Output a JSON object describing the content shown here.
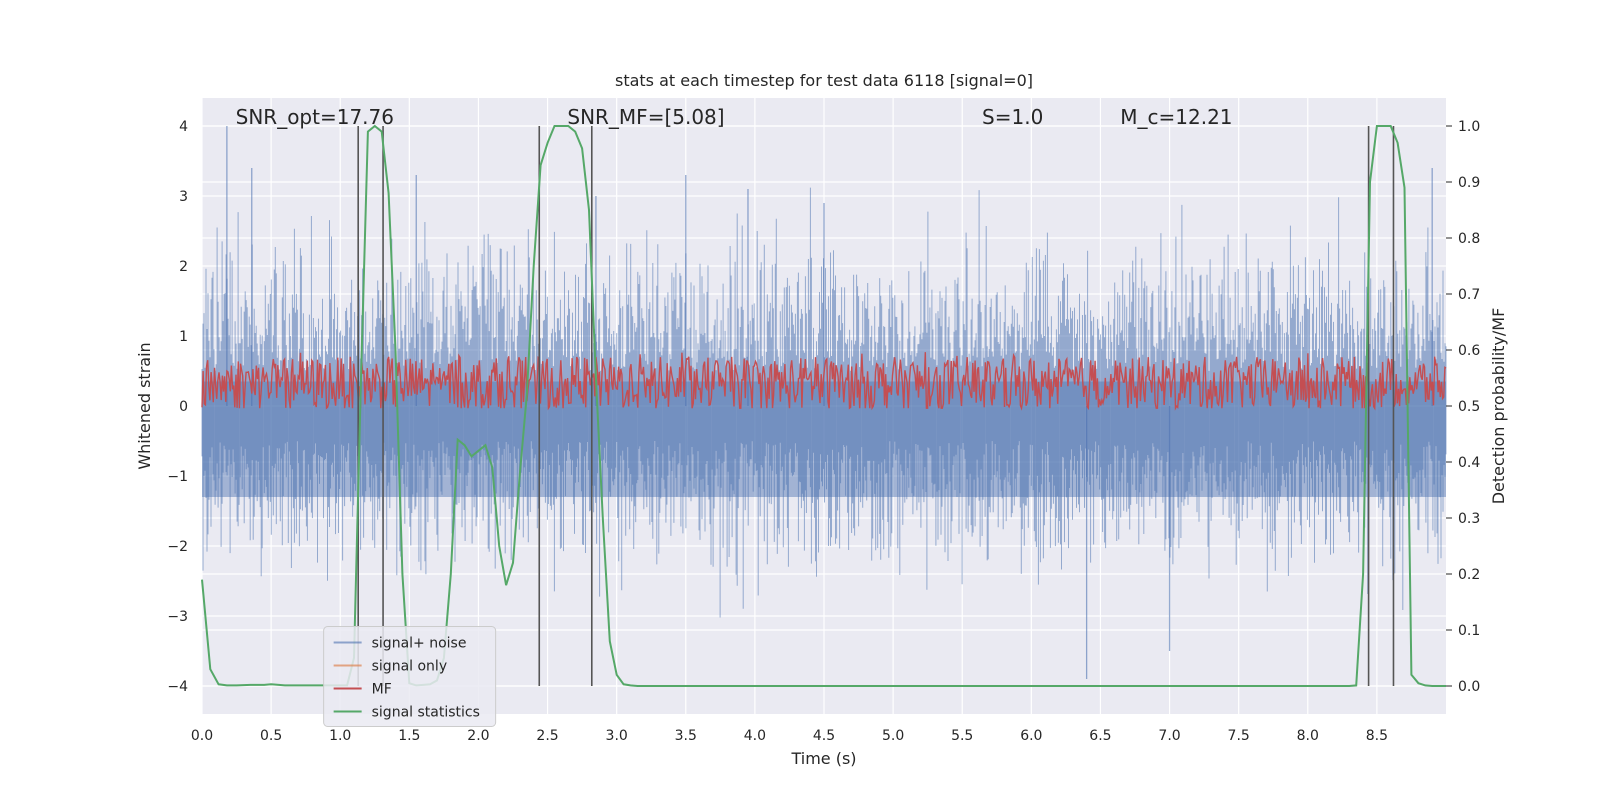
{
  "chart_data": {
    "type": "line",
    "title": "stats at each timestep for test data 6118 [signal=0]",
    "xlabel": "Time (s)",
    "ylabel": "Whitened strain",
    "y2label": "Detection probability/MF",
    "xlim": [
      0.0,
      9.0
    ],
    "ylim": [
      -4.4,
      4.4
    ],
    "y2lim": [
      -0.05,
      1.05
    ],
    "grid": true,
    "legend_location": "lower-left",
    "xticks": [
      0.0,
      0.5,
      1.0,
      1.5,
      2.0,
      2.5,
      3.0,
      3.5,
      4.0,
      4.5,
      5.0,
      5.5,
      6.0,
      6.5,
      7.0,
      7.5,
      8.0,
      8.5
    ],
    "xtick_labels": [
      "0.0",
      "0.5",
      "1.0",
      "1.5",
      "2.0",
      "2.5",
      "3.0",
      "3.5",
      "4.0",
      "4.5",
      "5.0",
      "5.5",
      "6.0",
      "6.5",
      "7.0",
      "7.5",
      "8.0",
      "8.5"
    ],
    "yticks": [
      -4,
      -3,
      -2,
      -1,
      0,
      1,
      2,
      3,
      4
    ],
    "ytick_labels": [
      "−4",
      "−3",
      "−2",
      "−1",
      "0",
      "1",
      "2",
      "3",
      "4"
    ],
    "y2ticks": [
      0.0,
      0.1,
      0.2,
      0.3,
      0.4,
      0.5,
      0.6,
      0.7,
      0.8,
      0.9,
      1.0
    ],
    "y2tick_labels": [
      "0.0",
      "0.1",
      "0.2",
      "0.3",
      "0.4",
      "0.5",
      "0.6",
      "0.7",
      "0.8",
      "0.9",
      "1.0"
    ],
    "annotations": [
      {
        "text": "SNR_opt=17.76",
        "x": 0.2,
        "y": 4.0
      },
      {
        "text": "SNR_MF=[5.08]",
        "x": 2.6,
        "y": 4.0
      },
      {
        "text": "S=1.0",
        "x": 5.6,
        "y": 4.0
      },
      {
        "text": "M_c=12.21",
        "x": 6.6,
        "y": 4.0
      }
    ],
    "vertical_markers": [
      1.13,
      1.31,
      2.44,
      2.82,
      8.44,
      8.62
    ],
    "vertical_marker_range": [
      -4.0,
      4.0
    ],
    "series": [
      {
        "name": "signal+ noise",
        "color": "#4c72b0",
        "axis": "left",
        "style": "noise",
        "x_range": [
          0.0,
          9.0
        ],
        "center": 0.0,
        "typical_amplitude": 1.6,
        "peak_amplitude": 4.0,
        "spike_times": [
          0.18,
          0.36,
          1.13,
          1.55,
          2.85,
          3.5,
          3.95,
          4.5,
          6.4,
          7.0,
          8.9
        ],
        "spike_values": [
          4.0,
          3.4,
          3.0,
          3.3,
          3.0,
          3.3,
          3.1,
          2.9,
          -3.9,
          -3.5,
          3.4
        ]
      },
      {
        "name": "signal only",
        "color": "#dd8452",
        "axis": "left",
        "x": [
          0.0,
          9.0
        ],
        "y": [
          0.0,
          0.0
        ]
      },
      {
        "name": "MF",
        "color": "#c44e52",
        "axis": "right",
        "style": "noise",
        "x_range": [
          0.0,
          9.0
        ],
        "center": 0.54,
        "band_low": 0.5,
        "band_high": 0.58,
        "peak_value": 0.6
      },
      {
        "name": "signal statistics",
        "color": "#55a868",
        "axis": "right",
        "x": [
          0.0,
          0.06,
          0.12,
          0.18,
          0.25,
          0.35,
          0.45,
          0.5,
          0.6,
          0.7,
          0.8,
          0.9,
          1.0,
          1.05,
          1.1,
          1.15,
          1.2,
          1.25,
          1.3,
          1.35,
          1.4,
          1.45,
          1.5,
          1.55,
          1.6,
          1.65,
          1.7,
          1.75,
          1.8,
          1.85,
          1.9,
          1.95,
          2.0,
          2.05,
          2.1,
          2.15,
          2.2,
          2.25,
          2.3,
          2.35,
          2.4,
          2.45,
          2.5,
          2.55,
          2.6,
          2.65,
          2.7,
          2.75,
          2.8,
          2.85,
          2.9,
          2.95,
          3.0,
          3.05,
          3.1,
          3.15,
          3.2,
          3.5,
          4.0,
          5.0,
          6.0,
          7.0,
          8.0,
          8.3,
          8.35,
          8.4,
          8.45,
          8.5,
          8.55,
          8.6,
          8.65,
          8.7,
          8.75,
          8.8,
          8.85,
          8.9,
          9.0
        ],
        "y": [
          0.19,
          0.03,
          0.003,
          0.001,
          0.001,
          0.002,
          0.002,
          0.003,
          0.001,
          0.001,
          0.001,
          0.001,
          0.001,
          0.001,
          0.05,
          0.55,
          0.99,
          1.0,
          0.99,
          0.88,
          0.6,
          0.2,
          0.005,
          0.001,
          0.002,
          0.003,
          0.01,
          0.05,
          0.2,
          0.44,
          0.43,
          0.41,
          0.42,
          0.43,
          0.39,
          0.25,
          0.18,
          0.22,
          0.38,
          0.52,
          0.75,
          0.93,
          0.97,
          1.0,
          1.0,
          1.0,
          0.99,
          0.96,
          0.85,
          0.55,
          0.3,
          0.08,
          0.02,
          0.003,
          0.001,
          0.0,
          0.0,
          0.0,
          0.0,
          0.0,
          0.0,
          0.0,
          0.0,
          0.0,
          0.001,
          0.2,
          0.9,
          1.0,
          1.0,
          1.0,
          0.97,
          0.89,
          0.02,
          0.005,
          0.001,
          0.0,
          0.0
        ]
      }
    ]
  }
}
